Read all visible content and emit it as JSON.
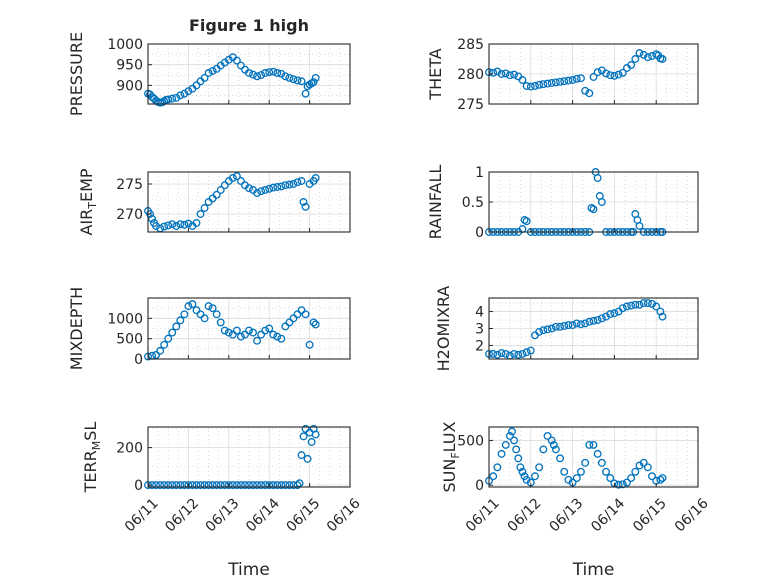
{
  "figure": {
    "background": "#ffffff",
    "marker_color": "#0072BD",
    "xlabel_text": "Time"
  },
  "chart_data": [
    {
      "id": "pressure",
      "type": "scatter",
      "title": "Figure 1 high",
      "ylabel": "PRESSURE",
      "ylim": [
        855,
        1000
      ],
      "yticks": [
        900,
        950,
        1000
      ],
      "xlim": [
        0,
        5
      ],
      "xtick_labels": [],
      "grid": true,
      "x": [
        0.0,
        0.05,
        0.1,
        0.15,
        0.2,
        0.25,
        0.3,
        0.35,
        0.4,
        0.45,
        0.5,
        0.6,
        0.7,
        0.8,
        0.9,
        1.0,
        1.1,
        1.2,
        1.3,
        1.4,
        1.5,
        1.6,
        1.7,
        1.8,
        1.9,
        2.0,
        2.1,
        2.2,
        2.3,
        2.4,
        2.5,
        2.6,
        2.7,
        2.8,
        2.9,
        3.0,
        3.1,
        3.2,
        3.3,
        3.4,
        3.5,
        3.6,
        3.7,
        3.8,
        3.9,
        3.95,
        4.0,
        4.05,
        4.1,
        4.15
      ],
      "y": [
        880,
        878,
        872,
        868,
        863,
        860,
        858,
        859,
        862,
        865,
        866,
        868,
        870,
        876,
        880,
        886,
        892,
        900,
        910,
        918,
        930,
        935,
        940,
        948,
        955,
        962,
        968,
        960,
        948,
        938,
        930,
        926,
        922,
        925,
        930,
        932,
        933,
        930,
        928,
        922,
        918,
        915,
        912,
        910,
        880,
        898,
        902,
        905,
        908,
        918
      ]
    },
    {
      "id": "theta",
      "type": "scatter",
      "title": "",
      "ylabel": "THETA",
      "ylim": [
        275,
        285
      ],
      "yticks": [
        275,
        280,
        285
      ],
      "xlim": [
        0,
        5
      ],
      "xtick_labels": [],
      "grid": true,
      "x": [
        0.0,
        0.1,
        0.2,
        0.3,
        0.4,
        0.5,
        0.6,
        0.7,
        0.8,
        0.9,
        1.0,
        1.1,
        1.2,
        1.3,
        1.4,
        1.5,
        1.6,
        1.7,
        1.8,
        1.9,
        2.0,
        2.1,
        2.2,
        2.3,
        2.4,
        2.5,
        2.6,
        2.7,
        2.8,
        2.9,
        3.0,
        3.1,
        3.2,
        3.3,
        3.4,
        3.5,
        3.6,
        3.7,
        3.8,
        3.9,
        4.0,
        4.05,
        4.1,
        4.15
      ],
      "y": [
        280.3,
        280.2,
        280.4,
        280.0,
        280.1,
        279.8,
        279.9,
        279.6,
        279.0,
        278.0,
        277.9,
        278.0,
        278.2,
        278.3,
        278.4,
        278.5,
        278.6,
        278.7,
        278.8,
        278.9,
        279.0,
        279.2,
        279.3,
        277.2,
        276.8,
        279.5,
        280.3,
        280.6,
        280.1,
        279.8,
        279.7,
        279.9,
        280.2,
        281.0,
        281.5,
        282.5,
        283.5,
        283.2,
        282.8,
        283.0,
        283.3,
        283.1,
        282.6,
        282.5
      ]
    },
    {
      "id": "air-temp",
      "type": "scatter",
      "title": "",
      "ylabel": "AIR_TEMP",
      "ylim": [
        267,
        277
      ],
      "yticks": [
        270,
        275
      ],
      "xlim": [
        0,
        5
      ],
      "xtick_labels": [],
      "grid": true,
      "x": [
        0.0,
        0.05,
        0.1,
        0.15,
        0.2,
        0.3,
        0.4,
        0.5,
        0.6,
        0.7,
        0.8,
        0.9,
        1.0,
        1.1,
        1.2,
        1.3,
        1.4,
        1.5,
        1.6,
        1.7,
        1.8,
        1.9,
        2.0,
        2.1,
        2.2,
        2.3,
        2.4,
        2.5,
        2.6,
        2.7,
        2.8,
        2.9,
        3.0,
        3.1,
        3.2,
        3.3,
        3.4,
        3.5,
        3.6,
        3.7,
        3.8,
        3.85,
        3.9,
        4.0,
        4.1,
        4.15
      ],
      "y": [
        270.5,
        270.0,
        269.2,
        268.5,
        268.0,
        267.6,
        267.9,
        268.1,
        268.3,
        268.0,
        268.3,
        268.2,
        268.4,
        268.0,
        268.5,
        270.0,
        271.0,
        272.0,
        272.6,
        273.2,
        274.0,
        274.8,
        275.5,
        276.0,
        276.3,
        275.5,
        274.8,
        274.3,
        274.0,
        273.5,
        273.8,
        274.0,
        274.2,
        274.4,
        274.5,
        274.6,
        274.8,
        274.9,
        275.0,
        275.3,
        275.5,
        272.0,
        271.2,
        275.0,
        275.5,
        276.0
      ]
    },
    {
      "id": "rainfall",
      "type": "scatter",
      "title": "",
      "ylabel": "RAINFALL",
      "ylim": [
        0,
        1
      ],
      "yticks": [
        0,
        0.5,
        1
      ],
      "xlim": [
        0,
        5
      ],
      "xtick_labels": [],
      "grid": true,
      "x": [
        0.0,
        0.1,
        0.2,
        0.3,
        0.4,
        0.5,
        0.6,
        0.7,
        0.8,
        0.85,
        0.9,
        1.0,
        1.1,
        1.2,
        1.3,
        1.4,
        1.5,
        1.6,
        1.7,
        1.8,
        1.9,
        2.0,
        2.1,
        2.2,
        2.3,
        2.4,
        2.45,
        2.5,
        2.55,
        2.6,
        2.65,
        2.7,
        2.8,
        2.9,
        3.0,
        3.1,
        3.2,
        3.3,
        3.4,
        3.45,
        3.5,
        3.55,
        3.6,
        3.7,
        3.8,
        3.9,
        4.0,
        4.1,
        4.15
      ],
      "y": [
        0,
        0,
        0,
        0,
        0,
        0,
        0,
        0,
        0.05,
        0.2,
        0.18,
        0,
        0,
        0,
        0,
        0,
        0,
        0,
        0,
        0,
        0,
        0,
        0,
        0,
        0,
        0,
        0.4,
        0.38,
        1.0,
        0.9,
        0.6,
        0.5,
        0,
        0,
        0,
        0,
        0,
        0,
        0,
        0,
        0.3,
        0.2,
        0.1,
        0,
        0,
        0,
        0,
        0,
        0
      ]
    },
    {
      "id": "mixdepth",
      "type": "scatter",
      "title": "",
      "ylabel": "MIXDEPTH",
      "ylim": [
        0,
        1500
      ],
      "yticks": [
        0,
        500,
        1000
      ],
      "xlim": [
        0,
        5
      ],
      "xtick_labels": [],
      "grid": true,
      "x": [
        0.0,
        0.1,
        0.2,
        0.3,
        0.4,
        0.5,
        0.6,
        0.7,
        0.8,
        0.9,
        1.0,
        1.1,
        1.2,
        1.3,
        1.4,
        1.5,
        1.6,
        1.7,
        1.8,
        1.9,
        2.0,
        2.1,
        2.2,
        2.3,
        2.4,
        2.5,
        2.6,
        2.7,
        2.8,
        2.9,
        3.0,
        3.1,
        3.2,
        3.3,
        3.4,
        3.5,
        3.6,
        3.7,
        3.8,
        3.9,
        4.0,
        4.1,
        4.15
      ],
      "y": [
        60,
        80,
        100,
        200,
        350,
        500,
        650,
        800,
        950,
        1100,
        1300,
        1350,
        1200,
        1100,
        1000,
        1300,
        1250,
        1100,
        900,
        700,
        650,
        600,
        700,
        550,
        600,
        700,
        650,
        450,
        600,
        700,
        750,
        600,
        550,
        500,
        800,
        900,
        1000,
        1100,
        1200,
        1100,
        350,
        900,
        850
      ]
    },
    {
      "id": "h2omixra",
      "type": "scatter",
      "title": "",
      "ylabel": "H2OMIXRA",
      "ylim": [
        1.2,
        4.8
      ],
      "yticks": [
        2,
        3,
        4
      ],
      "xlim": [
        0,
        5
      ],
      "xtick_labels": [],
      "grid": true,
      "x": [
        0.0,
        0.1,
        0.2,
        0.3,
        0.4,
        0.5,
        0.6,
        0.7,
        0.8,
        0.9,
        1.0,
        1.1,
        1.2,
        1.3,
        1.4,
        1.5,
        1.6,
        1.7,
        1.8,
        1.9,
        2.0,
        2.1,
        2.2,
        2.3,
        2.4,
        2.5,
        2.6,
        2.7,
        2.8,
        2.9,
        3.0,
        3.1,
        3.2,
        3.3,
        3.4,
        3.5,
        3.6,
        3.7,
        3.8,
        3.9,
        4.0,
        4.1,
        4.15
      ],
      "y": [
        1.5,
        1.5,
        1.45,
        1.55,
        1.5,
        1.4,
        1.5,
        1.45,
        1.5,
        1.6,
        1.7,
        2.6,
        2.8,
        2.9,
        2.95,
        3.0,
        3.1,
        3.1,
        3.15,
        3.2,
        3.2,
        3.3,
        3.25,
        3.3,
        3.4,
        3.45,
        3.5,
        3.6,
        3.7,
        3.85,
        3.9,
        4.0,
        4.2,
        4.3,
        4.35,
        4.4,
        4.4,
        4.5,
        4.5,
        4.45,
        4.3,
        4.0,
        3.7
      ]
    },
    {
      "id": "terr-msl",
      "type": "scatter",
      "title": "",
      "ylabel": "TERR_MSL",
      "ylim": [
        -10,
        310
      ],
      "yticks": [
        0,
        200
      ],
      "xlim": [
        0,
        5
      ],
      "xtick_labels": [
        "06/11",
        "06/12",
        "06/13",
        "06/14",
        "06/15",
        "06/16"
      ],
      "grid": true,
      "x": [
        0.0,
        0.1,
        0.2,
        0.3,
        0.4,
        0.5,
        0.6,
        0.7,
        0.8,
        0.9,
        1.0,
        1.1,
        1.2,
        1.3,
        1.4,
        1.5,
        1.6,
        1.7,
        1.8,
        1.9,
        2.0,
        2.1,
        2.2,
        2.3,
        2.4,
        2.5,
        2.6,
        2.7,
        2.8,
        2.9,
        3.0,
        3.1,
        3.2,
        3.3,
        3.4,
        3.5,
        3.6,
        3.7,
        3.75,
        3.8,
        3.85,
        3.9,
        3.95,
        4.0,
        4.05,
        4.1,
        4.15
      ],
      "y": [
        0,
        0,
        0,
        0,
        0,
        0,
        0,
        0,
        0,
        0,
        0,
        0,
        0,
        0,
        0,
        0,
        0,
        0,
        0,
        0,
        0,
        0,
        0,
        0,
        0,
        0,
        0,
        0,
        0,
        0,
        0,
        0,
        0,
        0,
        0,
        0,
        0,
        0,
        10,
        160,
        260,
        300,
        140,
        280,
        230,
        300,
        270
      ]
    },
    {
      "id": "sun-flux",
      "type": "scatter",
      "title": "",
      "ylabel": "SUN_FLUX",
      "ylim": [
        -20,
        650
      ],
      "yticks": [
        0,
        500
      ],
      "xlim": [
        0,
        5
      ],
      "xtick_labels": [
        "06/11",
        "06/12",
        "06/13",
        "06/14",
        "06/15",
        "06/16"
      ],
      "grid": true,
      "x": [
        0.0,
        0.1,
        0.2,
        0.3,
        0.4,
        0.5,
        0.55,
        0.6,
        0.65,
        0.7,
        0.75,
        0.8,
        0.85,
        0.9,
        1.0,
        1.1,
        1.2,
        1.3,
        1.4,
        1.5,
        1.55,
        1.6,
        1.7,
        1.8,
        1.9,
        2.0,
        2.1,
        2.2,
        2.3,
        2.4,
        2.5,
        2.6,
        2.7,
        2.8,
        2.9,
        3.0,
        3.1,
        3.2,
        3.3,
        3.4,
        3.5,
        3.6,
        3.7,
        3.8,
        3.9,
        4.0,
        4.1,
        4.15
      ],
      "y": [
        50,
        100,
        200,
        350,
        450,
        550,
        600,
        500,
        400,
        300,
        200,
        150,
        100,
        60,
        30,
        100,
        200,
        400,
        550,
        500,
        450,
        400,
        300,
        150,
        60,
        30,
        80,
        150,
        250,
        450,
        450,
        350,
        250,
        150,
        80,
        20,
        5,
        10,
        30,
        80,
        150,
        220,
        250,
        200,
        100,
        50,
        60,
        80
      ]
    }
  ]
}
